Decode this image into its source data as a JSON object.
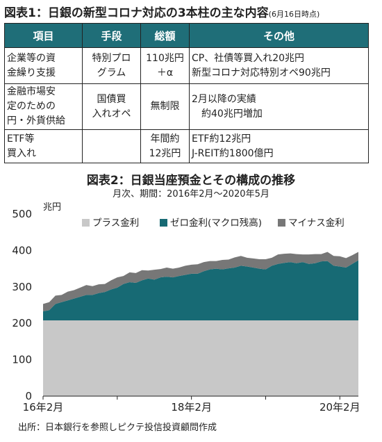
{
  "fig1": {
    "title": "図表1：日銀の新型コロナ対応の3本柱の主な内容",
    "note": "(6月16日時点)",
    "headers": [
      "項目",
      "手段",
      "総額",
      "その他"
    ],
    "rows": [
      [
        "企業等の資\n金繰り支援",
        "特別プロ\nグラム",
        "110兆円\n＋α",
        "CP、社債等買入れ20兆円\n新型コロナ対応特別オペ90兆円"
      ],
      [
        "金融市場安\n定のための\n円・外貨供給",
        "国債買\n入れオペ",
        "無制限",
        "2月以降の実績\n　約40兆円増加"
      ],
      [
        "ETF等\n買入れ",
        "",
        "年間約\n12兆円",
        "ETF約12兆円\nJ-REIT約1800億円"
      ]
    ]
  },
  "fig2": {
    "title": "図表2：日銀当座預金とその構成の推移",
    "subtitle": "月次、期間：2016年2月～2020年5月",
    "source": "出所：日本銀行を参照しピクテ投信投資顧問作成"
  },
  "chart_data": {
    "type": "area",
    "stacked": true,
    "ylabel": "兆円",
    "ylim": [
      0,
      500
    ],
    "yticks": [
      0,
      100,
      200,
      300,
      400,
      500
    ],
    "xtick_labels": [
      "16年2月",
      "18年2月",
      "20年2月"
    ],
    "x": [
      "2016-02",
      "2016-03",
      "2016-04",
      "2016-05",
      "2016-06",
      "2016-07",
      "2016-08",
      "2016-09",
      "2016-10",
      "2016-11",
      "2016-12",
      "2017-01",
      "2017-02",
      "2017-03",
      "2017-04",
      "2017-05",
      "2017-06",
      "2017-07",
      "2017-08",
      "2017-09",
      "2017-10",
      "2017-11",
      "2017-12",
      "2018-01",
      "2018-02",
      "2018-03",
      "2018-04",
      "2018-05",
      "2018-06",
      "2018-07",
      "2018-08",
      "2018-09",
      "2018-10",
      "2018-11",
      "2018-12",
      "2019-01",
      "2019-02",
      "2019-03",
      "2019-04",
      "2019-05",
      "2019-06",
      "2019-07",
      "2019-08",
      "2019-09",
      "2019-10",
      "2019-11",
      "2019-12",
      "2020-01",
      "2020-02",
      "2020-03",
      "2020-04",
      "2020-05"
    ],
    "series": [
      {
        "name": "プラス金利",
        "color": "#c8c8c8",
        "values": [
          208,
          208,
          208,
          208,
          208,
          208,
          208,
          208,
          208,
          208,
          208,
          208,
          208,
          208,
          208,
          208,
          208,
          208,
          208,
          208,
          208,
          208,
          208,
          208,
          208,
          208,
          208,
          208,
          208,
          208,
          208,
          208,
          208,
          208,
          208,
          208,
          208,
          208,
          208,
          208,
          208,
          208,
          208,
          208,
          208,
          208,
          208,
          208,
          208,
          208,
          208,
          208
        ]
      },
      {
        "name": "ゼロ金利(マクロ残高)",
        "color": "#176a74",
        "values": [
          25,
          28,
          45,
          50,
          55,
          60,
          65,
          70,
          70,
          75,
          78,
          85,
          90,
          100,
          105,
          103,
          110,
          115,
          112,
          118,
          120,
          118,
          122,
          125,
          128,
          128,
          135,
          140,
          142,
          140,
          143,
          145,
          150,
          148,
          145,
          142,
          140,
          150,
          155,
          158,
          160,
          157,
          160,
          155,
          157,
          162,
          163,
          150,
          148,
          145,
          155,
          165
        ]
      },
      {
        "name": "マイナス金利",
        "color": "#777777",
        "values": [
          20,
          22,
          23,
          20,
          24,
          23,
          25,
          27,
          24,
          24,
          22,
          25,
          28,
          22,
          27,
          27,
          28,
          22,
          27,
          23,
          25,
          24,
          23,
          25,
          25,
          26,
          25,
          23,
          21,
          26,
          24,
          28,
          27,
          24,
          25,
          26,
          28,
          22,
          26,
          25,
          24,
          25,
          21,
          26,
          25,
          20,
          25,
          27,
          28,
          26,
          24,
          23
        ]
      }
    ]
  }
}
